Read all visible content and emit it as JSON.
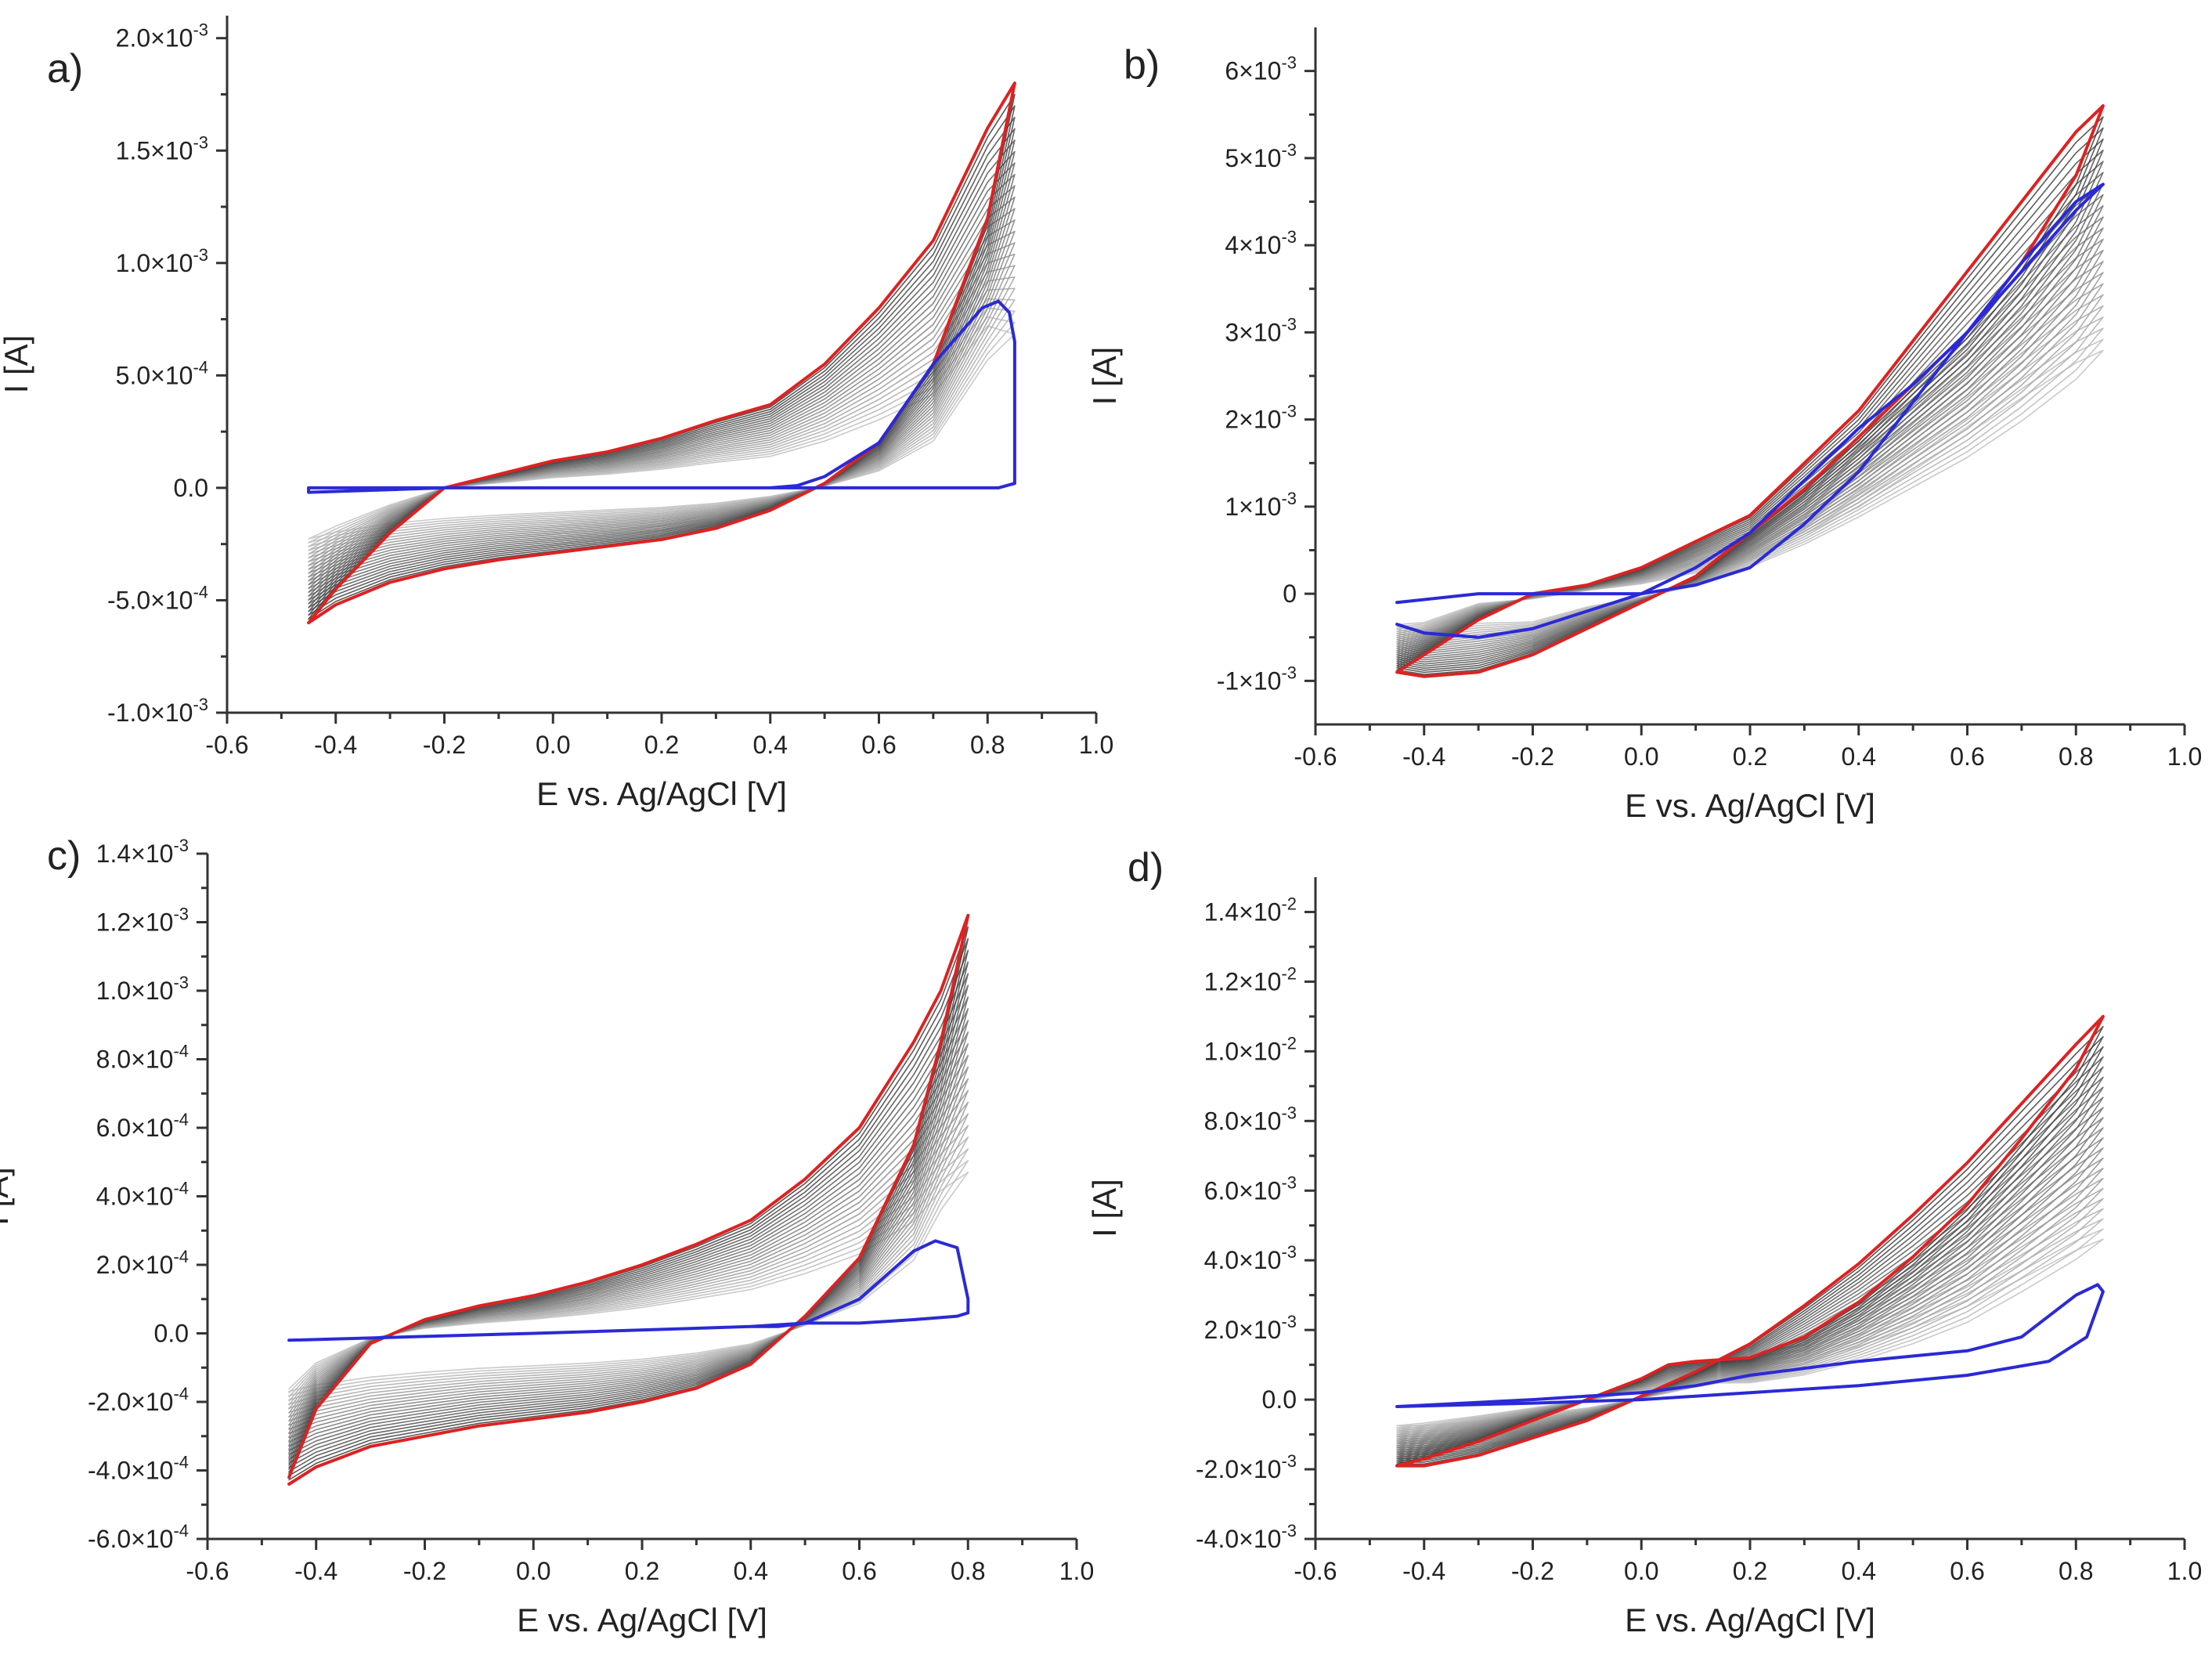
{
  "chart_data": [
    {
      "type": "line",
      "panel_label": "a)",
      "xlabel": "E vs. Ag/AgCl [V]",
      "ylabel": "I [A]",
      "xlim": [
        -0.6,
        1.0
      ],
      "ylim": [
        -0.001,
        0.0021
      ],
      "x_ticks": [
        -0.6,
        -0.4,
        -0.2,
        0.0,
        0.2,
        0.4,
        0.6,
        0.8,
        1.0
      ],
      "x_tick_labels": [
        "-0.6",
        "-0.4",
        "-0.2",
        "0.0",
        "0.2",
        "0.4",
        "0.6",
        "0.8",
        "1.0"
      ],
      "y_ticks": [
        -0.001,
        -0.0005,
        0,
        0.0005,
        0.001,
        0.0015,
        0.002
      ],
      "y_tick_labels": [
        {
          "m": "-1.0×10",
          "e": "-3"
        },
        {
          "m": "-5.0×10",
          "e": "-4"
        },
        {
          "m": "0.0",
          "e": ""
        },
        {
          "m": "5.0×10",
          "e": "-4"
        },
        {
          "m": "1.0×10",
          "e": "-3"
        },
        {
          "m": "1.5×10",
          "e": "-3"
        },
        {
          "m": "2.0×10",
          "e": "-3"
        }
      ],
      "grid": false,
      "legend": "none",
      "series": [
        {
          "color": "#2a2ad6",
          "x": [
            -0.45,
            0.0,
            0.4,
            0.5,
            0.6,
            0.7,
            0.78,
            0.82,
            0.85,
            0.85,
            0.84,
            0.82,
            0.79,
            0.7,
            0.6,
            0.5,
            0.45,
            0.4,
            0.0,
            -0.2,
            -0.45,
            -0.45
          ],
          "y": [
            0.0,
            0.0,
            0.0,
            0.0,
            0.0,
            0.0,
            0.0,
            0.0,
            2e-05,
            0.00065,
            0.00078,
            0.00083,
            0.0008,
            0.00055,
            0.0002,
            5e-05,
            1e-05,
            0.0,
            0.0,
            0.0,
            -2e-05,
            0.0
          ]
        },
        {
          "color": "#dd2222",
          "x": [
            -0.45,
            -0.4,
            -0.3,
            -0.2,
            -0.1,
            0.0,
            0.1,
            0.2,
            0.3,
            0.4,
            0.5,
            0.6,
            0.7,
            0.8,
            0.85,
            0.8,
            0.7,
            0.6,
            0.5,
            0.4,
            0.3,
            0.2,
            0.1,
            0.0,
            -0.1,
            -0.2,
            -0.3,
            -0.4,
            -0.45
          ],
          "y": [
            -0.0006,
            -0.00045,
            -0.0002,
            0.0,
            6e-05,
            0.00012,
            0.00016,
            0.00022,
            0.0003,
            0.00037,
            0.00055,
            0.0008,
            0.0011,
            0.0016,
            0.0018,
            0.0012,
            0.00055,
            0.0002,
            2e-05,
            -0.0001,
            -0.00018,
            -0.00023,
            -0.00026,
            -0.00029,
            -0.00032,
            -0.00036,
            -0.00042,
            -0.00052,
            -0.0006
          ]
        }
      ]
    },
    {
      "type": "line",
      "panel_label": "b)",
      "xlabel": "E vs. Ag/AgCl [V]",
      "ylabel": "I [A]",
      "xlim": [
        -0.6,
        1.0
      ],
      "ylim": [
        -0.0015,
        0.0065
      ],
      "x_ticks": [
        -0.6,
        -0.4,
        -0.2,
        0.0,
        0.2,
        0.4,
        0.6,
        0.8,
        1.0
      ],
      "x_tick_labels": [
        "-0.6",
        "-0.4",
        "-0.2",
        "0.0",
        "0.2",
        "0.4",
        "0.6",
        "0.8",
        "1.0"
      ],
      "y_ticks": [
        -0.001,
        0,
        0.001,
        0.002,
        0.003,
        0.004,
        0.005,
        0.006
      ],
      "y_tick_labels": [
        {
          "m": "-1×10",
          "e": "-3"
        },
        {
          "m": "0",
          "e": ""
        },
        {
          "m": "1×10",
          "e": "-3"
        },
        {
          "m": "2×10",
          "e": "-3"
        },
        {
          "m": "3×10",
          "e": "-3"
        },
        {
          "m": "4×10",
          "e": "-3"
        },
        {
          "m": "5×10",
          "e": "-3"
        },
        {
          "m": "6×10",
          "e": "-3"
        }
      ],
      "grid": false,
      "legend": "none",
      "series": [
        {
          "color": "#2a2ad6",
          "x": [
            -0.45,
            -0.3,
            -0.1,
            0.0,
            0.1,
            0.2,
            0.3,
            0.4,
            0.5,
            0.6,
            0.7,
            0.8,
            0.85,
            0.8,
            0.7,
            0.6,
            0.5,
            0.4,
            0.3,
            0.2,
            0.1,
            0.0,
            -0.1,
            -0.2,
            -0.3,
            -0.4,
            -0.45
          ],
          "y": [
            -0.0001,
            0.0,
            0.0,
            0.0,
            0.0001,
            0.0003,
            0.0008,
            0.0014,
            0.0022,
            0.003,
            0.0038,
            0.0045,
            0.0047,
            0.0044,
            0.0037,
            0.003,
            0.0024,
            0.0019,
            0.0013,
            0.0007,
            0.0003,
            0.0,
            -0.0002,
            -0.0004,
            -0.0005,
            -0.00045,
            -0.00035
          ]
        },
        {
          "color": "#dd2222",
          "x": [
            -0.45,
            -0.4,
            -0.3,
            -0.2,
            -0.1,
            0.0,
            0.1,
            0.2,
            0.3,
            0.4,
            0.5,
            0.6,
            0.7,
            0.8,
            0.85,
            0.8,
            0.7,
            0.6,
            0.5,
            0.4,
            0.3,
            0.2,
            0.1,
            0.0,
            -0.1,
            -0.2,
            -0.3,
            -0.4,
            -0.45
          ],
          "y": [
            -0.0009,
            -0.0007,
            -0.0003,
            0.0,
            0.0001,
            0.0003,
            0.0006,
            0.0009,
            0.0015,
            0.0021,
            0.0029,
            0.0037,
            0.0045,
            0.0053,
            0.0056,
            0.0048,
            0.0038,
            0.003,
            0.0024,
            0.0018,
            0.0012,
            0.0007,
            0.0002,
            -0.0001,
            -0.0004,
            -0.0007,
            -0.0009,
            -0.00095,
            -0.0009
          ]
        }
      ]
    },
    {
      "type": "line",
      "panel_label": "c)",
      "xlabel": "E vs. Ag/AgCl [V]",
      "ylabel": "I [A]",
      "xlim": [
        -0.6,
        1.0
      ],
      "ylim": [
        -0.0006,
        0.0014
      ],
      "x_ticks": [
        -0.6,
        -0.4,
        -0.2,
        0.0,
        0.2,
        0.4,
        0.6,
        0.8,
        1.0
      ],
      "x_tick_labels": [
        "-0.6",
        "-0.4",
        "-0.2",
        "0.0",
        "0.2",
        "0.4",
        "0.6",
        "0.8",
        "1.0"
      ],
      "y_ticks": [
        -0.0006,
        -0.0004,
        -0.0002,
        0,
        0.0002,
        0.0004,
        0.0006,
        0.0008,
        0.001,
        0.0012,
        0.0014
      ],
      "y_tick_labels": [
        {
          "m": "-6.0×10",
          "e": "-4"
        },
        {
          "m": "-4.0×10",
          "e": "-4"
        },
        {
          "m": "-2.0×10",
          "e": "-4"
        },
        {
          "m": "0.0",
          "e": ""
        },
        {
          "m": "2.0×10",
          "e": "-4"
        },
        {
          "m": "4.0×10",
          "e": "-4"
        },
        {
          "m": "6.0×10",
          "e": "-4"
        },
        {
          "m": "8.0×10",
          "e": "-4"
        },
        {
          "m": "1.0×10",
          "e": "-3"
        },
        {
          "m": "1.2×10",
          "e": "-3"
        },
        {
          "m": "1.4×10",
          "e": "-3"
        }
      ],
      "grid": false,
      "legend": "none",
      "series": [
        {
          "color": "#2a2ad6",
          "x": [
            -0.45,
            0.0,
            0.4,
            0.5,
            0.6,
            0.7,
            0.78,
            0.8,
            0.8,
            0.78,
            0.74,
            0.7,
            0.6,
            0.5,
            0.45,
            0.4,
            0.0,
            -0.45,
            -0.45
          ],
          "y": [
            -2e-05,
            0.0,
            2e-05,
            3e-05,
            3e-05,
            4e-05,
            5e-05,
            6e-05,
            0.0001,
            0.00025,
            0.00027,
            0.00024,
            0.0001,
            3e-05,
            2e-05,
            2e-05,
            0.0,
            -2e-05,
            -2e-05
          ]
        },
        {
          "color": "#dd2222",
          "x": [
            -0.45,
            -0.4,
            -0.3,
            -0.2,
            -0.1,
            0.0,
            0.1,
            0.2,
            0.3,
            0.4,
            0.5,
            0.6,
            0.7,
            0.75,
            0.8,
            0.75,
            0.7,
            0.6,
            0.5,
            0.4,
            0.3,
            0.2,
            0.1,
            0.0,
            -0.1,
            -0.2,
            -0.3,
            -0.4,
            -0.45
          ],
          "y": [
            -0.00042,
            -0.00022,
            -3e-05,
            4e-05,
            8e-05,
            0.00011,
            0.00015,
            0.0002,
            0.00026,
            0.00033,
            0.00045,
            0.0006,
            0.00085,
            0.001,
            0.00122,
            0.00085,
            0.00055,
            0.00022,
            5e-05,
            -9e-05,
            -0.00016,
            -0.0002,
            -0.00023,
            -0.00025,
            -0.00027,
            -0.0003,
            -0.00033,
            -0.00039,
            -0.00044
          ]
        }
      ]
    },
    {
      "type": "line",
      "panel_label": "d)",
      "xlabel": "E vs. Ag/AgCl [V]",
      "ylabel": "I [A]",
      "xlim": [
        -0.6,
        1.0
      ],
      "ylim": [
        -0.004,
        0.015
      ],
      "x_ticks": [
        -0.6,
        -0.4,
        -0.2,
        0.0,
        0.2,
        0.4,
        0.6,
        0.8,
        1.0
      ],
      "x_tick_labels": [
        "-0.6",
        "-0.4",
        "-0.2",
        "0.0",
        "0.2",
        "0.4",
        "0.6",
        "0.8",
        "1.0"
      ],
      "y_ticks": [
        -0.004,
        -0.002,
        0,
        0.002,
        0.004,
        0.006,
        0.008,
        0.01,
        0.012,
        0.014
      ],
      "y_tick_labels": [
        {
          "m": "-4.0×10",
          "e": "-3"
        },
        {
          "m": "-2.0×10",
          "e": "-3"
        },
        {
          "m": "0.0",
          "e": ""
        },
        {
          "m": "2.0×10",
          "e": "-3"
        },
        {
          "m": "4.0×10",
          "e": "-3"
        },
        {
          "m": "6.0×10",
          "e": "-3"
        },
        {
          "m": "8.0×10",
          "e": "-3"
        },
        {
          "m": "1.0×10",
          "e": "-2"
        },
        {
          "m": "1.2×10",
          "e": "-2"
        },
        {
          "m": "1.4×10",
          "e": "-2"
        }
      ],
      "grid": false,
      "legend": "none",
      "series": [
        {
          "color": "#2a2ad6",
          "x": [
            -0.45,
            -0.2,
            0.0,
            0.2,
            0.4,
            0.6,
            0.75,
            0.82,
            0.85,
            0.84,
            0.8,
            0.7,
            0.6,
            0.4,
            0.2,
            0.1,
            0.0,
            -0.2,
            -0.45
          ],
          "y": [
            -0.0002,
            -0.0001,
            0.0,
            0.0002,
            0.0004,
            0.0007,
            0.0011,
            0.0018,
            0.0031,
            0.0033,
            0.003,
            0.0018,
            0.0014,
            0.0011,
            0.0007,
            0.0004,
            0.0002,
            0.0,
            -0.0002
          ]
        },
        {
          "color": "#dd2222",
          "x": [
            -0.45,
            -0.4,
            -0.3,
            -0.2,
            -0.1,
            0.0,
            0.1,
            0.2,
            0.3,
            0.4,
            0.5,
            0.6,
            0.7,
            0.8,
            0.85,
            0.8,
            0.7,
            0.6,
            0.5,
            0.4,
            0.3,
            0.2,
            0.1,
            0.05,
            0.0,
            -0.1,
            -0.2,
            -0.3,
            -0.4,
            -0.45
          ],
          "y": [
            -0.0019,
            -0.0019,
            -0.0016,
            -0.0011,
            -0.0006,
            0.0001,
            0.0008,
            0.0016,
            0.0027,
            0.0039,
            0.0053,
            0.0068,
            0.0085,
            0.0102,
            0.011,
            0.0095,
            0.0075,
            0.0056,
            0.0041,
            0.0028,
            0.0018,
            0.0012,
            0.0011,
            0.001,
            0.0006,
            0.0,
            -0.0006,
            -0.0012,
            -0.0017,
            -0.0019
          ]
        }
      ]
    }
  ]
}
